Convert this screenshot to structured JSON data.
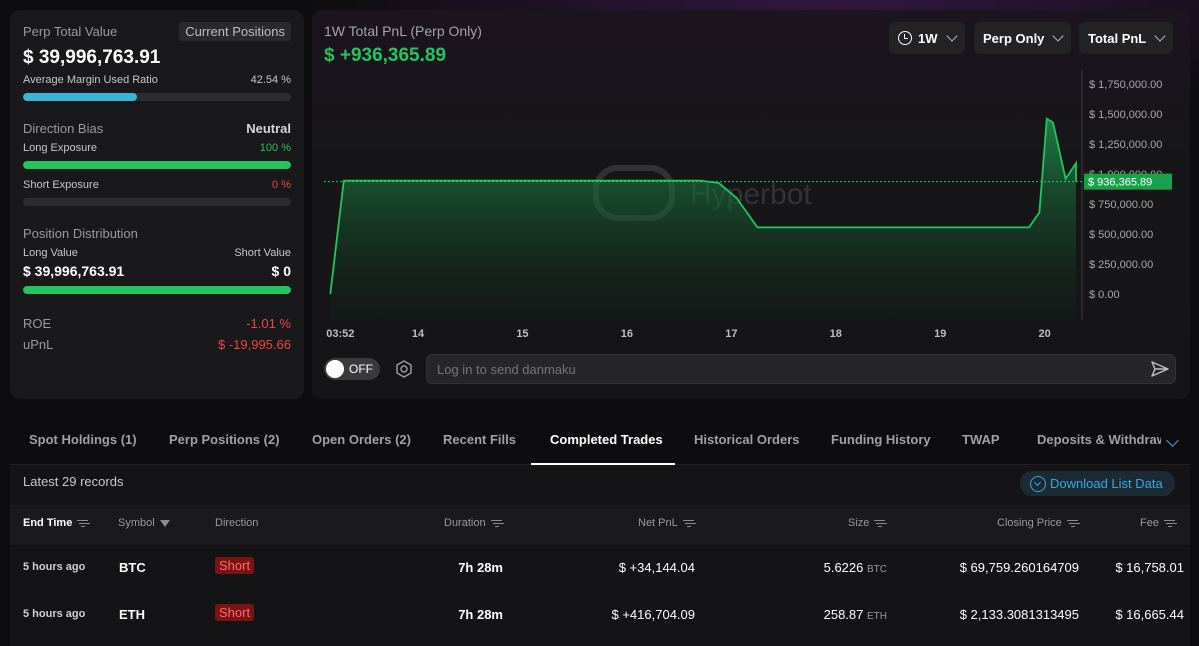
{
  "summary": {
    "perp_total_value_label": "Perp Total Value",
    "current_positions_label": "Current Positions",
    "perp_total_value": "$ 39,996,763.91",
    "avg_margin_label": "Average Margin Used Ratio",
    "avg_margin_value": "42.54 %",
    "avg_margin_fraction": 0.4254,
    "direction_bias_label": "Direction Bias",
    "direction_bias_value": "Neutral",
    "long_exposure_label": "Long Exposure",
    "long_exposure_value": "100 %",
    "long_exposure_fraction": 1.0,
    "short_exposure_label": "Short Exposure",
    "short_exposure_value": "0 %",
    "short_exposure_fraction": 0.0,
    "position_distribution_label": "Position Distribution",
    "long_value_label": "Long Value",
    "short_value_label": "Short Value",
    "long_value": "$ 39,996,763.91",
    "short_value": "$ 0",
    "long_value_fraction": 1.0,
    "roe_label": "ROE",
    "roe_value": "-1.01 %",
    "upnl_label": "uPnL",
    "upnl_value": "$ -19,995.66"
  },
  "chart_panel": {
    "title": "1W Total PnL (Perp Only)",
    "pnl_value": "$ +936,365.89",
    "dropdown_period": "1W",
    "dropdown_scope": "Perp Only",
    "dropdown_metric": "Total PnL",
    "watermark": "Hyperbot",
    "danmaku_toggle": "OFF",
    "danmaku_placeholder": "Log in to send danmaku"
  },
  "chart_data": {
    "type": "area",
    "title": "1W Total PnL (Perp Only)",
    "xlabel": "",
    "ylabel": "",
    "x_tick_labels": [
      "03:52",
      "14",
      "15",
      "16",
      "17",
      "18",
      "19",
      "20"
    ],
    "x_tick_days": [
      13.16,
      14,
      15,
      16,
      17,
      18,
      19,
      20
    ],
    "y_tick_labels": [
      "$ 1,750,000.00",
      "$ 1,500,000.00",
      "$ 1,250,000.00",
      "$ 1,000,000.00",
      "$ 750,000.00",
      "$ 500,000.00",
      "$ 250,000.00",
      "$ 0.00"
    ],
    "y_tick_values": [
      1750000,
      1500000,
      1250000,
      1000000,
      750000,
      500000,
      250000,
      0
    ],
    "ylim": [
      0,
      1800000
    ],
    "xlim": [
      13.1,
      20.3
    ],
    "current_value_label": "$ 936,365.89",
    "current_value": 936365.89,
    "x": [
      13.16,
      13.29,
      16.7,
      16.88,
      17.05,
      17.25,
      19.7,
      19.85,
      19.95,
      20.02,
      20.08,
      20.2,
      20.3,
      20.42
    ],
    "y": [
      0,
      945000,
      945000,
      925000,
      800000,
      555000,
      555000,
      555000,
      680000,
      1460000,
      1430000,
      960000,
      1090000,
      936366
    ],
    "grid": false,
    "legend": "none"
  },
  "tabs": [
    {
      "label": "Spot Holdings (1)"
    },
    {
      "label": "Perp Positions (2)"
    },
    {
      "label": "Open Orders (2)"
    },
    {
      "label": "Recent Fills"
    },
    {
      "label": "Completed Trades"
    },
    {
      "label": "Historical Orders"
    },
    {
      "label": "Funding History"
    },
    {
      "label": "TWAP"
    },
    {
      "label": "Deposits & Withdraw"
    }
  ],
  "table": {
    "records_label": "Latest 29 records",
    "download_label": "Download List Data",
    "columns": [
      "End Time",
      "Symbol",
      "Direction",
      "Duration",
      "Net PnL",
      "Size",
      "Closing Price",
      "Fee"
    ],
    "rows": [
      {
        "end_time": "5 hours ago",
        "symbol": "BTC",
        "direction": "Short",
        "duration": "7h 28m",
        "net_pnl": "$ +34,144.04",
        "size": "5.6226",
        "size_unit": "BTC",
        "closing_price": "$ 69,759.260164709",
        "fee": "$ 16,758.01"
      },
      {
        "end_time": "5 hours ago",
        "symbol": "ETH",
        "direction": "Short",
        "duration": "7h 28m",
        "net_pnl": "$ +416,704.09",
        "size": "258.87",
        "size_unit": "ETH",
        "closing_price": "$ 2,133.3081313495",
        "fee": "$ 16,665.44"
      }
    ]
  },
  "colors": {
    "positive": "#22c55e",
    "negative": "#ef4444",
    "accent": "#3aa7e0",
    "margin_bar": "#3bb4d6"
  }
}
